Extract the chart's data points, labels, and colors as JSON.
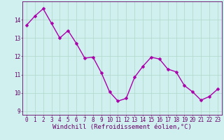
{
  "hours": [
    0,
    1,
    2,
    3,
    4,
    5,
    6,
    7,
    8,
    9,
    10,
    11,
    12,
    13,
    14,
    15,
    16,
    17,
    18,
    19,
    20,
    21,
    22,
    23
  ],
  "values": [
    13.7,
    14.2,
    14.6,
    13.8,
    13.0,
    13.4,
    12.7,
    11.9,
    11.95,
    11.1,
    10.05,
    9.55,
    9.7,
    10.85,
    11.45,
    11.95,
    11.85,
    11.3,
    11.15,
    10.4,
    10.05,
    9.6,
    9.8,
    10.2
  ],
  "xlim": [
    -0.5,
    23.5
  ],
  "ylim": [
    8.8,
    15.0
  ],
  "yticks": [
    9,
    10,
    11,
    12,
    13,
    14
  ],
  "xticks": [
    0,
    1,
    2,
    3,
    4,
    5,
    6,
    7,
    8,
    9,
    10,
    11,
    12,
    13,
    14,
    15,
    16,
    17,
    18,
    19,
    20,
    21,
    22,
    23
  ],
  "xlabel": "Windchill (Refroidissement éolien,°C)",
  "line_color": "#aa00aa",
  "marker_color": "#aa00aa",
  "bg_color": "#d0f0f0",
  "grid_color": "#b0d8c8",
  "axis_color": "#660066",
  "tick_color": "#660066",
  "label_color": "#660066",
  "font_size_tick": 5.5,
  "font_size_label": 6.5,
  "marker_size": 2.5,
  "line_width": 1.0
}
